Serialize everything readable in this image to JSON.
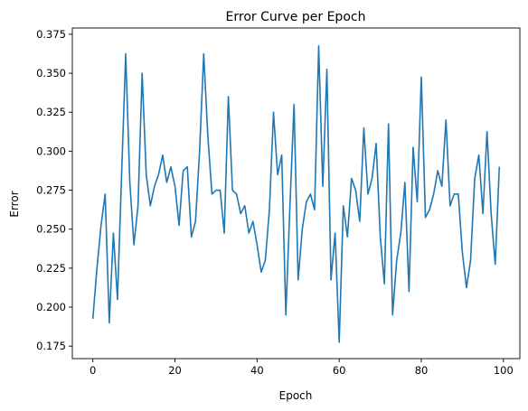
{
  "chart_data": {
    "type": "line",
    "title": "Error Curve per Epoch",
    "xlabel": "Epoch",
    "ylabel": "Error",
    "xlim": [
      -5,
      104
    ],
    "ylim": [
      0.167,
      0.379
    ],
    "x_ticks": [
      0,
      20,
      40,
      60,
      80,
      100
    ],
    "y_ticks": [
      0.175,
      0.2,
      0.225,
      0.25,
      0.275,
      0.3,
      0.325,
      0.35,
      0.375
    ],
    "y_tick_labels": [
      "0.175",
      "0.200",
      "0.225",
      "0.250",
      "0.275",
      "0.300",
      "0.325",
      "0.350",
      "0.375"
    ],
    "grid": false,
    "line_color": "#1f77b4",
    "series": [
      {
        "x": [
          0,
          1,
          2,
          3,
          4,
          5,
          6,
          7,
          8,
          9,
          10,
          11,
          12,
          13,
          14,
          15,
          16,
          17,
          18,
          19,
          20,
          21,
          22,
          23,
          24,
          25,
          26,
          27,
          28,
          29,
          30,
          31,
          32,
          33,
          34,
          35,
          36,
          37,
          38,
          39,
          40,
          41,
          42,
          43,
          44,
          45,
          46,
          47,
          48,
          49,
          50,
          51,
          52,
          53,
          54,
          55,
          56,
          57,
          58,
          59,
          60,
          61,
          62,
          63,
          64,
          65,
          66,
          67,
          68,
          69,
          70,
          71,
          72,
          73,
          74,
          75,
          76,
          77,
          78,
          79,
          80,
          81,
          82,
          83,
          84,
          85,
          86,
          87,
          88,
          89,
          90,
          91,
          92,
          93,
          94,
          95,
          96,
          97,
          98,
          99
        ],
        "values": [
          0.1925,
          0.225,
          0.2525,
          0.2725,
          0.19,
          0.2475,
          0.205,
          0.285,
          0.3625,
          0.28,
          0.24,
          0.265,
          0.35,
          0.285,
          0.265,
          0.2775,
          0.285,
          0.2975,
          0.28,
          0.29,
          0.2775,
          0.2525,
          0.2875,
          0.29,
          0.245,
          0.255,
          0.3,
          0.3625,
          0.31,
          0.2725,
          0.275,
          0.275,
          0.2475,
          0.335,
          0.275,
          0.2725,
          0.26,
          0.265,
          0.2475,
          0.255,
          0.24,
          0.2225,
          0.23,
          0.2625,
          0.325,
          0.285,
          0.2975,
          0.195,
          0.265,
          0.33,
          0.2175,
          0.25,
          0.2675,
          0.2725,
          0.2625,
          0.3675,
          0.2775,
          0.3525,
          0.2175,
          0.2475,
          0.1775,
          0.265,
          0.245,
          0.2825,
          0.275,
          0.255,
          0.315,
          0.2725,
          0.2825,
          0.305,
          0.245,
          0.215,
          0.3175,
          0.195,
          0.23,
          0.2475,
          0.28,
          0.21,
          0.3025,
          0.2675,
          0.3475,
          0.2575,
          0.2625,
          0.2725,
          0.2875,
          0.2775,
          0.32,
          0.265,
          0.2725,
          0.2725,
          0.235,
          0.2125,
          0.23,
          0.2825,
          0.2975,
          0.26,
          0.3125,
          0.26,
          0.2275,
          0.29
        ]
      }
    ]
  }
}
